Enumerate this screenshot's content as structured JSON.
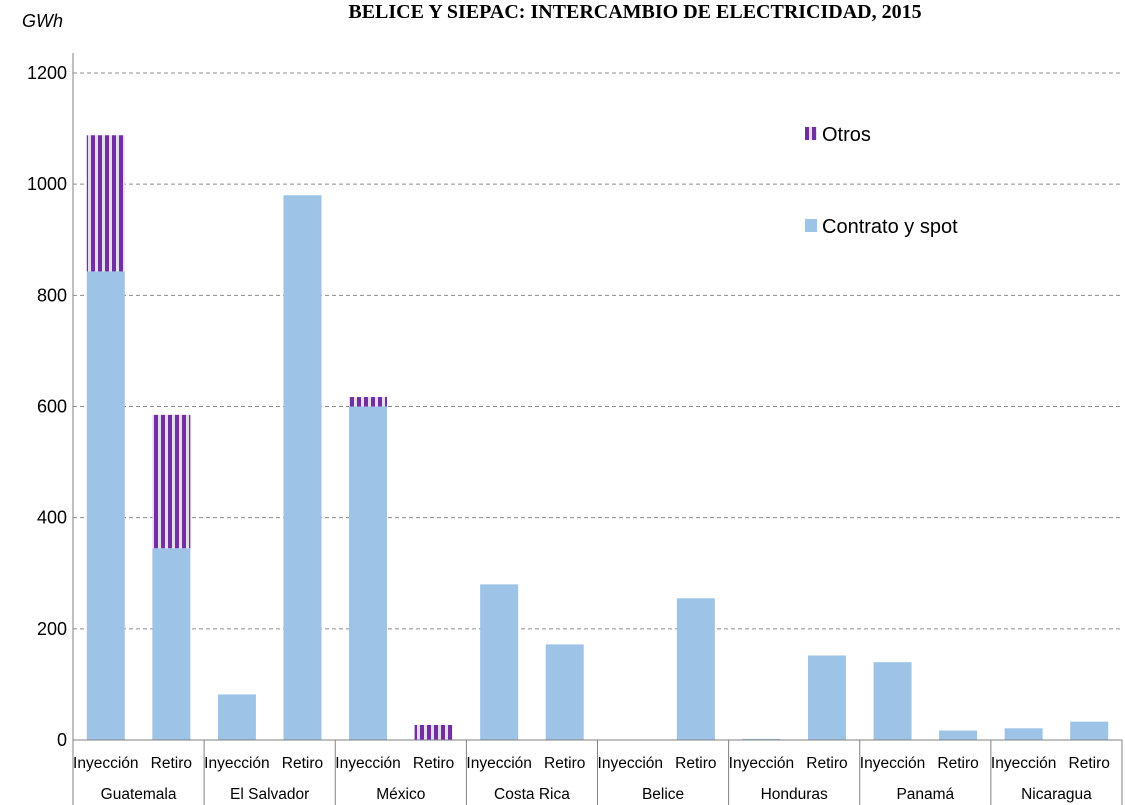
{
  "chart_data": {
    "type": "bar",
    "stacked": true,
    "title": "BELICE Y SIEPAC: INTERCAMBIO DE ELECTRICIDAD, 2015",
    "ylabel": "GWh",
    "ylim": [
      0,
      1200
    ],
    "yticks": [
      0,
      200,
      400,
      600,
      800,
      1000,
      1200
    ],
    "grid": true,
    "legend_position": "top-right",
    "categories": [
      "Inyección",
      "Retiro",
      "Inyección",
      "Retiro",
      "Inyección",
      "Retiro",
      "Inyección",
      "Retiro",
      "Inyección",
      "Retiro",
      "Inyección",
      "Retiro",
      "Inyección",
      "Retiro",
      "Inyección",
      "Retiro"
    ],
    "groups": [
      "Guatemala",
      "El Salvador",
      "México",
      "Costa Rica",
      "Belice",
      "Honduras",
      "Panamá",
      "Nicaragua"
    ],
    "series": [
      {
        "name": "Contrato y spot",
        "color": "#9dc3e6",
        "values": [
          843,
          345,
          82,
          980,
          600,
          0,
          280,
          172,
          0,
          255,
          2,
          152,
          140,
          17,
          21,
          33
        ]
      },
      {
        "name": "Otros",
        "color": "#7030a0",
        "values": [
          245,
          240,
          0,
          0,
          17,
          27,
          0,
          0,
          0,
          0,
          0,
          0,
          0,
          0,
          0,
          0
        ]
      }
    ]
  }
}
